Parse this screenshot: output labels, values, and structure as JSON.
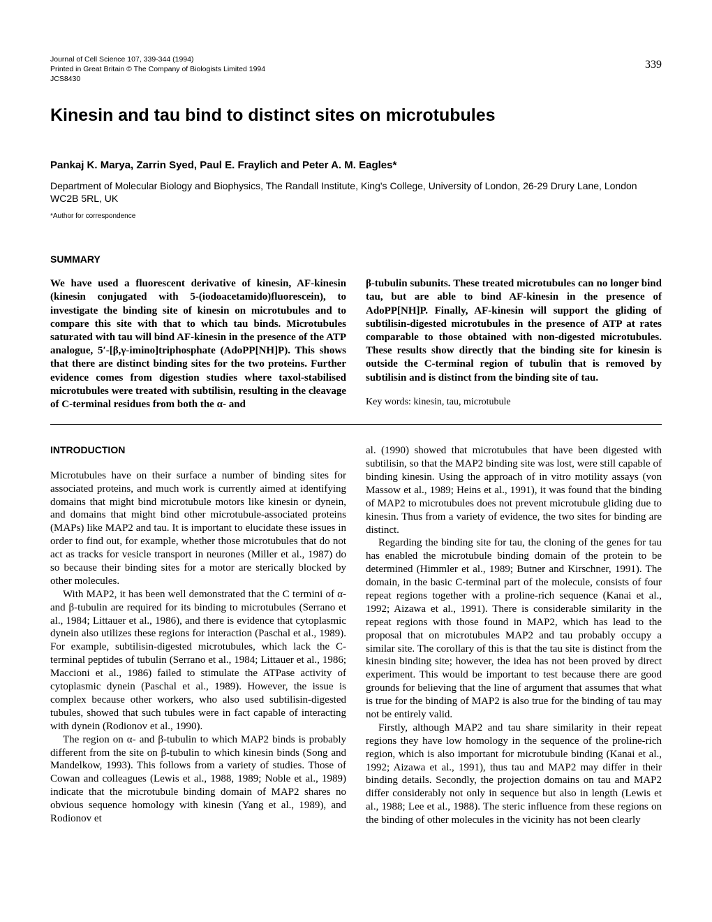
{
  "page_number": "339",
  "journal": {
    "line1": "Journal of Cell Science 107, 339-344 (1994)",
    "line2": "Printed in Great Britain © The Company of Biologists Limited 1994",
    "line3": "JCS8430"
  },
  "title": "Kinesin and tau bind to distinct sites on microtubules",
  "authors": "Pankaj K. Marya, Zarrin Syed, Paul E. Fraylich and Peter A. M. Eagles*",
  "affiliation": "Department of Molecular Biology and Biophysics, The Randall Institute, King's College, University of London, 26-29 Drury Lane, London WC2B 5RL, UK",
  "corresponding": "*Author for correspondence",
  "summary_heading": "SUMMARY",
  "summary": {
    "left": "We have used a fluorescent derivative of kinesin, AF-kinesin (kinesin conjugated with 5-(iodoacetamido)fluorescein), to investigate the binding site of kinesin on microtubules and to compare this site with that to which tau binds. Microtubules saturated with tau will bind AF-kinesin in the presence of the ATP analogue, 5′-[β,γ-imino]triphosphate (AdoPP[NH]P). This shows that there are distinct binding sites for the two proteins. Further evidence comes from digestion studies where taxol-stabilised microtubules were treated with subtilisin, resulting in the cleavage of C-terminal residues from both the α- and",
    "right_p1": "β-tubulin subunits. These treated microtubules can no longer bind tau, but are able to bind AF-kinesin in the presence of AdoPP[NH]P. Finally, AF-kinesin will support the gliding of subtilisin-digested microtubules in the presence of ATP at rates comparable to those obtained with non-digested microtubules. These results show directly that the binding site for kinesin is outside the C-terminal region of tubulin that is removed by subtilisin and is distinct from the binding site of tau.",
    "keywords": "Key words: kinesin, tau, microtubule"
  },
  "intro_heading": "INTRODUCTION",
  "intro": {
    "left_p1": "Microtubules have on their surface a number of binding sites for associated proteins, and much work is currently aimed at identifying domains that might bind microtubule motors like kinesin or dynein, and domains that might bind other microtubule-associated proteins (MAPs) like MAP2 and tau. It is important to elucidate these issues in order to find out, for example, whether those microtubules that do not act as tracks for vesicle transport in neurones (Miller et al., 1987) do so because their binding sites for a motor are sterically blocked by other molecules.",
    "left_p2": "With MAP2, it has been well demonstrated that the C termini of α- and β-tubulin are required for its binding to microtubules (Serrano et al., 1984; Littauer et al., 1986), and there is evidence that cytoplasmic dynein also utilizes these regions for interaction (Paschal et al., 1989). For example, subtilisin-digested microtubules, which lack the C-terminal peptides of tubulin (Serrano et al., 1984; Littauer et al., 1986; Maccioni et al., 1986) failed to stimulate the ATPase activity of cytoplasmic dynein (Paschal et al., 1989). However, the issue is complex because other workers, who also used subtilisin-digested tubules, showed that such tubules were in fact capable of interacting with dynein (Rodionov et al., 1990).",
    "left_p3": "The region on α- and β-tubulin to which MAP2 binds is probably different from the site on β-tubulin to which kinesin binds (Song and Mandelkow, 1993). This follows from a variety of studies. Those of Cowan and colleagues (Lewis et al., 1988, 1989; Noble et al., 1989) indicate that the microtubule binding domain of MAP2 shares no obvious sequence homology with kinesin (Yang et al., 1989), and Rodionov et",
    "right_p1": "al. (1990) showed that microtubules that have been digested with subtilisin, so that the MAP2 binding site was lost, were still capable of binding kinesin. Using the approach of in vitro motility assays (von Massow et al., 1989; Heins et al., 1991), it was found that the binding of MAP2 to microtubules does not prevent microtubule gliding due to kinesin. Thus from a variety of evidence, the two sites for binding are distinct.",
    "right_p2": "Regarding the binding site for tau, the cloning of the genes for tau has enabled the microtubule binding domain of the protein to be determined (Himmler et al., 1989; Butner and Kirschner, 1991). The domain, in the basic C-terminal part of the molecule, consists of four repeat regions together with a proline-rich sequence (Kanai et al., 1992; Aizawa et al., 1991). There is considerable similarity in the repeat regions with those found in MAP2, which has lead to the proposal that on microtubules MAP2 and tau probably occupy a similar site. The corollary of this is that the tau site is distinct from the kinesin binding site; however, the idea has not been proved by direct experiment. This would be important to test because there are good grounds for believing that the line of argument that assumes that what is true for the binding of MAP2 is also true for the binding of tau may not be entirely valid.",
    "right_p3": "Firstly, although MAP2 and tau share similarity in their repeat regions they have low homology in the sequence of the proline-rich region, which is also important for microtubule binding (Kanai et al., 1992; Aizawa et al., 1991), thus tau and MAP2 may differ in their binding details. Secondly, the projection domains on tau and MAP2 differ considerably not only in sequence but also in length (Lewis et al., 1988; Lee et al., 1988). The steric influence from these regions on the binding of other molecules in the vicinity has not been clearly"
  }
}
